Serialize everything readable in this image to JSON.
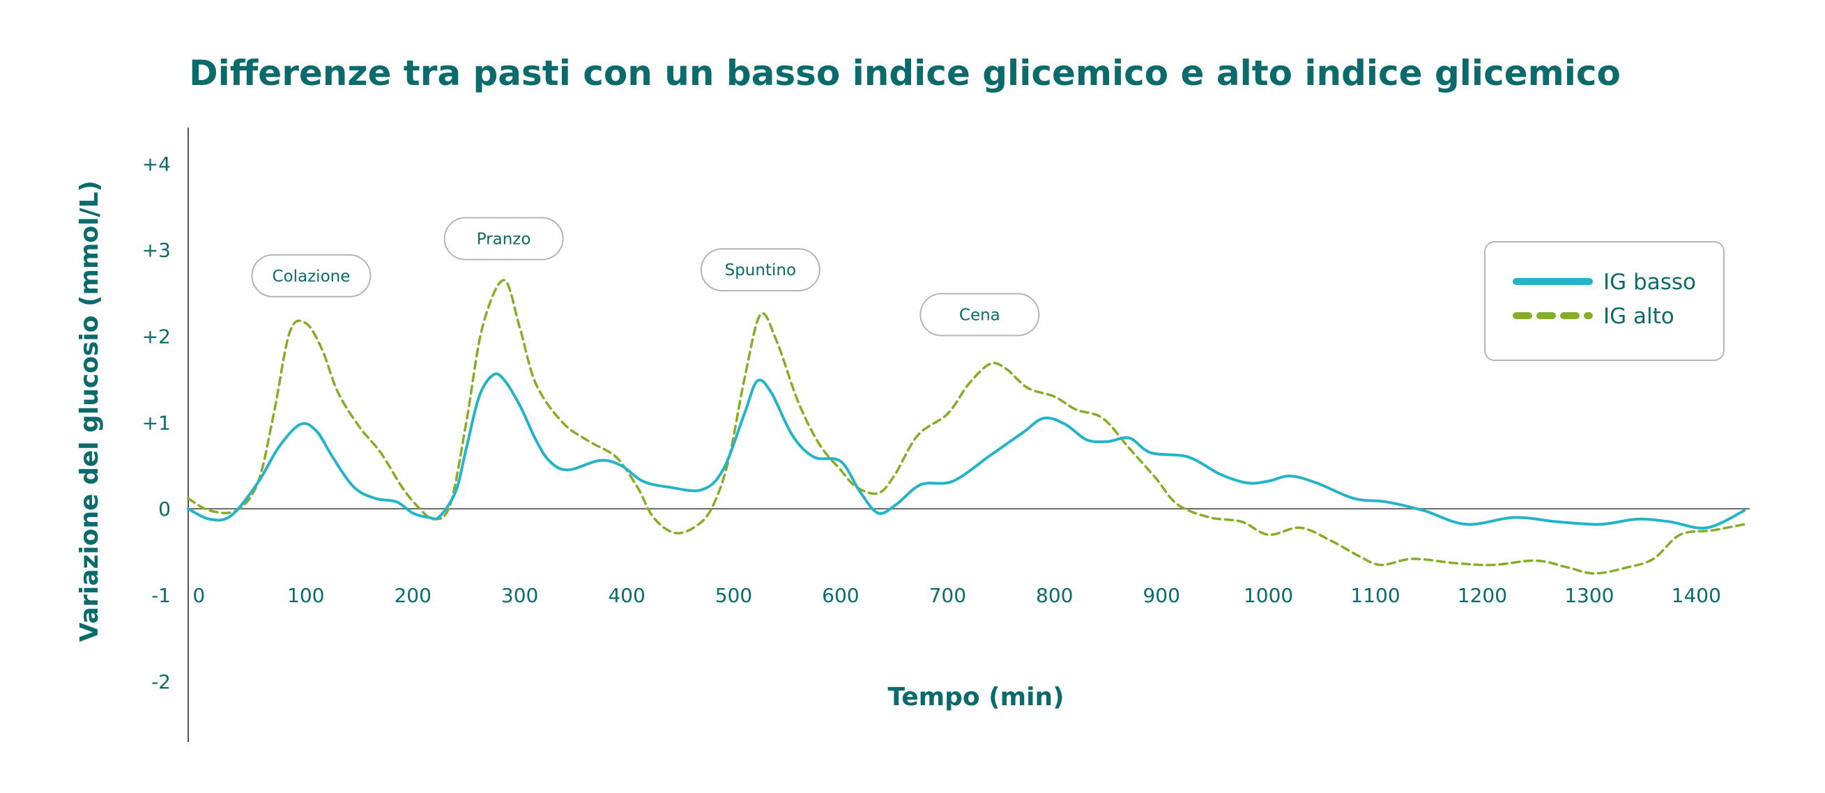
{
  "chart_data": {
    "type": "line",
    "title": "Differenze tra pasti con un basso indice glicemico e alto indice glicemico",
    "xlabel": "Tempo (min)",
    "ylabel": "Variazione del glucosio (mmol/L)",
    "xlim": [
      -10,
      1450
    ],
    "ylim": [
      -2.3,
      4.2
    ],
    "x_ticks": [
      0,
      100,
      200,
      300,
      400,
      500,
      600,
      700,
      800,
      900,
      1000,
      1100,
      1200,
      1300,
      1400
    ],
    "x_tick_labels": [
      "0",
      "100",
      "200",
      "300",
      "400",
      "500",
      "600",
      "700",
      "800",
      "900",
      "1000",
      "1100",
      "1200",
      "1300",
      "1400"
    ],
    "y_ticks": [
      4,
      3,
      2,
      1,
      0,
      -1,
      -2
    ],
    "y_tick_labels": [
      "+4",
      "+3",
      "+2",
      "+1",
      "0",
      "-1",
      "-2"
    ],
    "grid": false,
    "legend_position": "top-right",
    "series": [
      {
        "name": "IG basso",
        "color": "#25b3c8",
        "style": "solid",
        "points": [
          [
            -10,
            0
          ],
          [
            10,
            -0.12
          ],
          [
            30,
            -0.08
          ],
          [
            55,
            0.3
          ],
          [
            75,
            0.72
          ],
          [
            95,
            0.98
          ],
          [
            110,
            0.9
          ],
          [
            125,
            0.6
          ],
          [
            145,
            0.25
          ],
          [
            165,
            0.12
          ],
          [
            185,
            0.08
          ],
          [
            200,
            -0.05
          ],
          [
            215,
            -0.1
          ],
          [
            225,
            -0.09
          ],
          [
            240,
            0.2
          ],
          [
            250,
            0.7
          ],
          [
            262,
            1.3
          ],
          [
            275,
            1.55
          ],
          [
            285,
            1.5
          ],
          [
            300,
            1.2
          ],
          [
            315,
            0.8
          ],
          [
            328,
            0.55
          ],
          [
            345,
            0.45
          ],
          [
            375,
            0.56
          ],
          [
            395,
            0.5
          ],
          [
            415,
            0.32
          ],
          [
            440,
            0.25
          ],
          [
            470,
            0.22
          ],
          [
            490,
            0.45
          ],
          [
            510,
            1.1
          ],
          [
            522,
            1.48
          ],
          [
            535,
            1.35
          ],
          [
            555,
            0.85
          ],
          [
            575,
            0.6
          ],
          [
            600,
            0.55
          ],
          [
            618,
            0.2
          ],
          [
            635,
            -0.05
          ],
          [
            652,
            0.05
          ],
          [
            675,
            0.28
          ],
          [
            705,
            0.32
          ],
          [
            740,
            0.62
          ],
          [
            770,
            0.88
          ],
          [
            790,
            1.05
          ],
          [
            810,
            0.98
          ],
          [
            830,
            0.8
          ],
          [
            850,
            0.78
          ],
          [
            870,
            0.82
          ],
          [
            890,
            0.65
          ],
          [
            925,
            0.6
          ],
          [
            955,
            0.4
          ],
          [
            980,
            0.3
          ],
          [
            1000,
            0.32
          ],
          [
            1020,
            0.38
          ],
          [
            1045,
            0.3
          ],
          [
            1080,
            0.12
          ],
          [
            1110,
            0.08
          ],
          [
            1145,
            -0.02
          ],
          [
            1185,
            -0.18
          ],
          [
            1230,
            -0.1
          ],
          [
            1270,
            -0.15
          ],
          [
            1310,
            -0.18
          ],
          [
            1345,
            -0.12
          ],
          [
            1375,
            -0.15
          ],
          [
            1410,
            -0.22
          ],
          [
            1445,
            -0.02
          ]
        ]
      },
      {
        "name": "IG alto",
        "color": "#86ad28",
        "style": "dashed",
        "points": [
          [
            -10,
            0.12
          ],
          [
            10,
            -0.02
          ],
          [
            35,
            -0.02
          ],
          [
            55,
            0.3
          ],
          [
            70,
            1.1
          ],
          [
            85,
            2.05
          ],
          [
            100,
            2.15
          ],
          [
            115,
            1.85
          ],
          [
            130,
            1.35
          ],
          [
            150,
            0.95
          ],
          [
            170,
            0.65
          ],
          [
            190,
            0.25
          ],
          [
            205,
            0.02
          ],
          [
            220,
            -0.12
          ],
          [
            235,
            0.05
          ],
          [
            250,
            1.0
          ],
          [
            265,
            2.1
          ],
          [
            285,
            2.65
          ],
          [
            300,
            2.1
          ],
          [
            315,
            1.45
          ],
          [
            340,
            1.0
          ],
          [
            365,
            0.78
          ],
          [
            390,
            0.6
          ],
          [
            410,
            0.25
          ],
          [
            425,
            -0.1
          ],
          [
            445,
            -0.28
          ],
          [
            465,
            -0.2
          ],
          [
            480,
            0.02
          ],
          [
            495,
            0.55
          ],
          [
            510,
            1.5
          ],
          [
            525,
            2.25
          ],
          [
            540,
            1.95
          ],
          [
            560,
            1.25
          ],
          [
            580,
            0.75
          ],
          [
            600,
            0.45
          ],
          [
            615,
            0.25
          ],
          [
            635,
            0.18
          ],
          [
            650,
            0.38
          ],
          [
            672,
            0.85
          ],
          [
            700,
            1.1
          ],
          [
            720,
            1.45
          ],
          [
            740,
            1.68
          ],
          [
            755,
            1.62
          ],
          [
            775,
            1.4
          ],
          [
            800,
            1.3
          ],
          [
            820,
            1.15
          ],
          [
            845,
            1.05
          ],
          [
            870,
            0.7
          ],
          [
            895,
            0.35
          ],
          [
            915,
            0.05
          ],
          [
            945,
            -0.1
          ],
          [
            975,
            -0.15
          ],
          [
            1000,
            -0.3
          ],
          [
            1030,
            -0.22
          ],
          [
            1060,
            -0.38
          ],
          [
            1085,
            -0.55
          ],
          [
            1105,
            -0.65
          ],
          [
            1135,
            -0.58
          ],
          [
            1175,
            -0.63
          ],
          [
            1210,
            -0.65
          ],
          [
            1250,
            -0.6
          ],
          [
            1280,
            -0.68
          ],
          [
            1305,
            -0.75
          ],
          [
            1335,
            -0.68
          ],
          [
            1360,
            -0.58
          ],
          [
            1385,
            -0.3
          ],
          [
            1415,
            -0.25
          ],
          [
            1445,
            -0.18
          ]
        ]
      }
    ],
    "annotations": [
      {
        "label": "Colazione",
        "x": 105,
        "y": 2.7
      },
      {
        "label": "Pranzo",
        "x": 285,
        "y": 3.13
      },
      {
        "label": "Spuntino",
        "x": 525,
        "y": 2.77
      },
      {
        "label": "Cena",
        "x": 730,
        "y": 2.25
      }
    ]
  }
}
